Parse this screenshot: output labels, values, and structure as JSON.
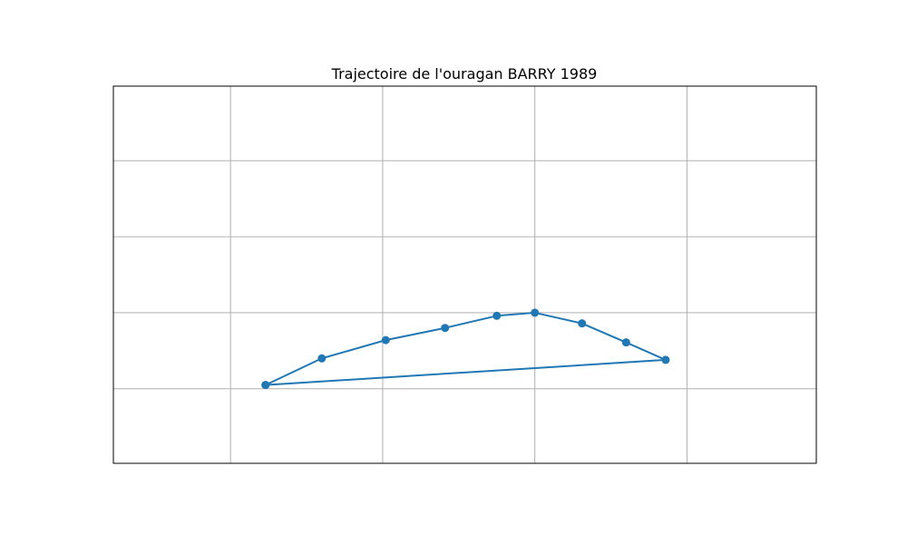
{
  "chart_data": {
    "type": "line",
    "title": "Trajectoire de l'ouragan BARRY 1989",
    "xlabel": "",
    "ylabel": "",
    "xlim": [
      -0.77,
      3.85
    ],
    "ylim": [
      -1.98,
      2.98
    ],
    "grid": true,
    "x_gridlines": [
      0,
      1,
      2,
      3
    ],
    "y_gridlines": [
      -1,
      0,
      1,
      2
    ],
    "tick_labels_visible": false,
    "colors": {
      "series": "#1f77b4",
      "grid": "#b0b0b0",
      "frame": "#000000"
    },
    "series": [
      {
        "x": [
          0.23,
          0.6,
          1.02,
          1.41,
          1.75,
          2.0,
          2.31,
          2.6,
          2.86,
          0.23
        ],
        "y": [
          -0.95,
          -0.6,
          -0.36,
          -0.2,
          -0.04,
          0.0,
          -0.14,
          -0.39,
          -0.62,
          -0.95
        ]
      }
    ]
  }
}
